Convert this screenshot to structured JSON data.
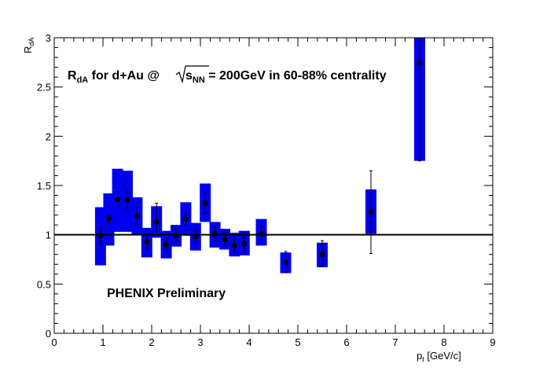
{
  "chart_data": {
    "type": "scatter",
    "title": "",
    "annotation": {
      "prefix": "R",
      "prefix_sub": "dA",
      "middle": " for d+Au @ ",
      "sqrt_s": "s",
      "sqrt_sub": "NN",
      "suffix": " = 200GeV in  60-88% centrality",
      "watermark": "PHENIX Preliminary",
      "watermark_color": "#e00000"
    },
    "xlabel": {
      "main": "p",
      "sub": "t",
      "unit": " [GeV/c]"
    },
    "ylabel": {
      "main": "R",
      "sub": "dA"
    },
    "xlim": [
      0,
      9
    ],
    "ylim": [
      0,
      3
    ],
    "x_ticks": [
      "0",
      "1",
      "2",
      "3",
      "4",
      "5",
      "6",
      "7",
      "8",
      "9"
    ],
    "y_ticks": [
      {
        "v": 0,
        "label": "0"
      },
      {
        "v": 0.5,
        "label": "0.5"
      },
      {
        "v": 1,
        "label": "1"
      },
      {
        "v": 1.5,
        "label": "1.5"
      },
      {
        "v": 2,
        "label": "2"
      },
      {
        "v": 2.5,
        "label": "2.5"
      },
      {
        "v": 3,
        "label": "3"
      }
    ],
    "reference_line": 1.0,
    "box_color": "#0000ee",
    "points": [
      {
        "x": 0.95,
        "y": 0.99,
        "sys_lo": 0.69,
        "sys_hi": 1.28,
        "stat_lo": 0.9,
        "stat_hi": 1.07
      },
      {
        "x": 1.12,
        "y": 1.16,
        "sys_lo": 0.89,
        "sys_hi": 1.42,
        "stat_lo": 1.11,
        "stat_hi": 1.21
      },
      {
        "x": 1.3,
        "y": 1.36,
        "sys_lo": 1.03,
        "sys_hi": 1.67,
        "stat_lo": 1.29,
        "stat_hi": 1.44
      },
      {
        "x": 1.5,
        "y": 1.35,
        "sys_lo": 1.03,
        "sys_hi": 1.65,
        "stat_lo": 1.25,
        "stat_hi": 1.45
      },
      {
        "x": 1.7,
        "y": 1.19,
        "sys_lo": 1.0,
        "sys_hi": 1.38,
        "stat_lo": 1.1,
        "stat_hi": 1.28
      },
      {
        "x": 1.9,
        "y": 0.93,
        "sys_lo": 0.77,
        "sys_hi": 1.07,
        "stat_lo": 0.85,
        "stat_hi": 1.01
      },
      {
        "x": 2.1,
        "y": 1.13,
        "sys_lo": 0.97,
        "sys_hi": 1.29,
        "stat_lo": 1.03,
        "stat_hi": 1.32
      },
      {
        "x": 2.3,
        "y": 0.9,
        "sys_lo": 0.76,
        "sys_hi": 1.04,
        "stat_lo": 0.83,
        "stat_hi": 0.97
      },
      {
        "x": 2.5,
        "y": 0.99,
        "sys_lo": 0.88,
        "sys_hi": 1.1,
        "stat_lo": 0.92,
        "stat_hi": 1.06
      },
      {
        "x": 2.7,
        "y": 1.16,
        "sys_lo": 0.99,
        "sys_hi": 1.33,
        "stat_lo": 1.09,
        "stat_hi": 1.23
      },
      {
        "x": 2.9,
        "y": 0.98,
        "sys_lo": 0.84,
        "sys_hi": 1.12,
        "stat_lo": 0.91,
        "stat_hi": 1.05
      },
      {
        "x": 3.1,
        "y": 1.32,
        "sys_lo": 1.13,
        "sys_hi": 1.52,
        "stat_lo": 1.22,
        "stat_hi": 1.43
      },
      {
        "x": 3.3,
        "y": 1.01,
        "sys_lo": 0.87,
        "sys_hi": 1.13,
        "stat_lo": 0.94,
        "stat_hi": 1.08
      },
      {
        "x": 3.5,
        "y": 0.95,
        "sys_lo": 0.85,
        "sys_hi": 1.06,
        "stat_lo": 0.89,
        "stat_hi": 1.02
      },
      {
        "x": 3.7,
        "y": 0.89,
        "sys_lo": 0.78,
        "sys_hi": 1.02,
        "stat_lo": 0.83,
        "stat_hi": 0.96
      },
      {
        "x": 3.9,
        "y": 0.91,
        "sys_lo": 0.79,
        "sys_hi": 1.04,
        "stat_lo": 0.84,
        "stat_hi": 0.98
      },
      {
        "x": 4.25,
        "y": 1.01,
        "sys_lo": 0.89,
        "sys_hi": 1.16,
        "stat_lo": 0.95,
        "stat_hi": 1.08
      },
      {
        "x": 4.75,
        "y": 0.72,
        "sys_lo": 0.61,
        "sys_hi": 0.82,
        "stat_lo": 0.62,
        "stat_hi": 0.83
      },
      {
        "x": 5.5,
        "y": 0.8,
        "sys_lo": 0.67,
        "sys_hi": 0.92,
        "stat_lo": 0.68,
        "stat_hi": 0.94
      },
      {
        "x": 6.5,
        "y": 1.23,
        "sys_lo": 1.01,
        "sys_hi": 1.46,
        "stat_lo": 0.81,
        "stat_hi": 1.65
      },
      {
        "x": 7.5,
        "y": 2.74,
        "sys_lo": 1.75,
        "sys_hi": 3.0,
        "stat_lo": 1.75,
        "stat_hi": 3.0
      }
    ]
  }
}
